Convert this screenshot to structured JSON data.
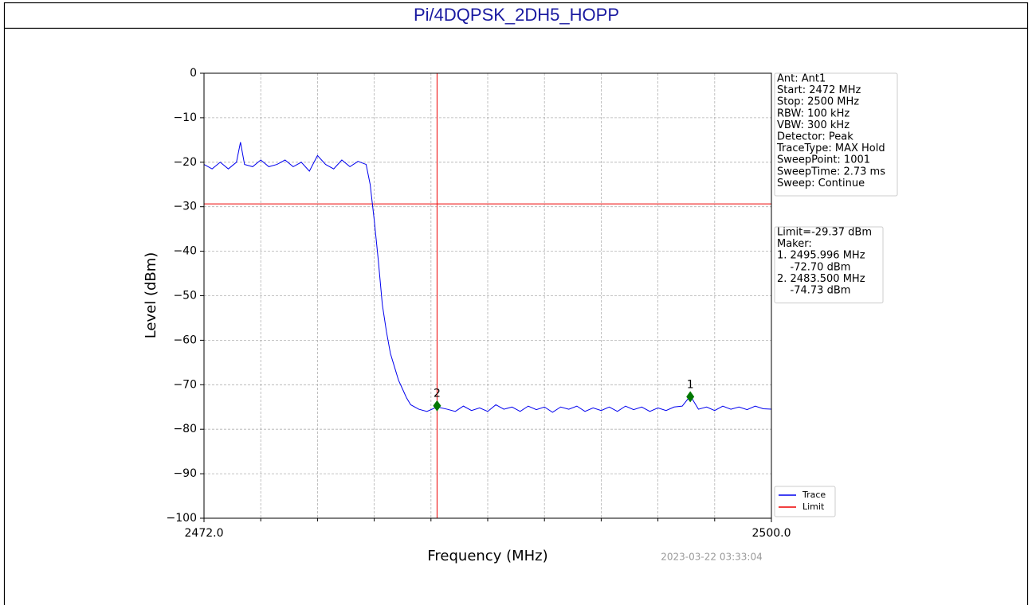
{
  "chart_data": {
    "type": "line",
    "title": "Pi/4DQPSK_2DH5_HOPP",
    "xlabel": "Frequency (MHz)",
    "ylabel": "Level (dBm)",
    "timestamp": "2023-03-22 03:33:04",
    "xlim": [
      2472,
      2500
    ],
    "ylim": [
      -100,
      0
    ],
    "xticks": [
      {
        "value": 2472,
        "label": "2472.0"
      },
      {
        "value": 2500,
        "label": "2500.0"
      }
    ],
    "xminor_ticks": [
      2474.8,
      2477.6,
      2480.4,
      2483.2,
      2486,
      2488.8,
      2491.6,
      2494.4,
      2497.2
    ],
    "yticks": [
      {
        "value": -100,
        "label": "−100"
      },
      {
        "value": -90,
        "label": "−90"
      },
      {
        "value": -80,
        "label": "−80"
      },
      {
        "value": -70,
        "label": "−70"
      },
      {
        "value": -60,
        "label": "−60"
      },
      {
        "value": -50,
        "label": "−50"
      },
      {
        "value": -40,
        "label": "−40"
      },
      {
        "value": -30,
        "label": "−30"
      },
      {
        "value": -20,
        "label": "−20"
      },
      {
        "value": -10,
        "label": "−10"
      },
      0
    ],
    "grid": true,
    "legend": "lower right",
    "x": [
      2472.0,
      2472.4,
      2472.8,
      2473.2,
      2473.6,
      2473.8,
      2474.0,
      2474.4,
      2474.8,
      2475.2,
      2475.6,
      2476.0,
      2476.4,
      2476.8,
      2477.2,
      2477.6,
      2478.0,
      2478.4,
      2478.8,
      2479.2,
      2479.6,
      2480.0,
      2480.2,
      2480.4,
      2480.6,
      2480.8,
      2481.0,
      2481.2,
      2481.4,
      2481.6,
      2481.8,
      2482.0,
      2482.2,
      2482.6,
      2483.0,
      2483.5,
      2484.0,
      2484.4,
      2484.8,
      2485.2,
      2485.6,
      2486.0,
      2486.4,
      2486.8,
      2487.2,
      2487.6,
      2488.0,
      2488.4,
      2488.8,
      2489.2,
      2489.6,
      2490.0,
      2490.4,
      2490.8,
      2491.2,
      2491.6,
      2492.0,
      2492.4,
      2492.8,
      2493.2,
      2493.6,
      2494.0,
      2494.4,
      2494.8,
      2495.2,
      2495.6,
      2496.0,
      2496.4,
      2496.8,
      2497.2,
      2497.6,
      2498.0,
      2498.4,
      2498.8,
      2499.2,
      2499.6,
      2500.0
    ],
    "series": [
      {
        "name": "Trace",
        "color": "#0000ee",
        "values": [
          -20.5,
          -21.5,
          -20,
          -21.5,
          -20,
          -15.5,
          -20.5,
          -21,
          -19.5,
          -21,
          -20.5,
          -19.5,
          -21,
          -20,
          -22,
          -18.5,
          -20.5,
          -21.5,
          -19.5,
          -21,
          -19.8,
          -20.5,
          -25,
          -33,
          -42,
          -52,
          -58,
          -63,
          -66,
          -69,
          -71,
          -73,
          -74.5,
          -75.5,
          -76,
          -75,
          -75.5,
          -76,
          -74.8,
          -75.8,
          -75.2,
          -76,
          -74.5,
          -75.5,
          -75,
          -76,
          -74.8,
          -75.6,
          -75,
          -76.2,
          -75,
          -75.5,
          -74.8,
          -76,
          -75.2,
          -75.8,
          -75,
          -76,
          -74.8,
          -75.6,
          -75,
          -76,
          -75.2,
          -75.8,
          -75,
          -74.8,
          -72.5,
          -75.5,
          -75,
          -75.8,
          -74.8,
          -75.5,
          -75,
          -75.6,
          -74.8,
          -75.4,
          -75.5
        ]
      }
    ],
    "limit": {
      "name": "Limit",
      "value": -29.37,
      "color": "#ee0000"
    },
    "markers": [
      {
        "label": "1",
        "x": 2495.996,
        "y": -72.7,
        "color": "#007700"
      },
      {
        "label": "2",
        "x": 2483.5,
        "y": -74.73,
        "color": "#007700"
      }
    ],
    "info": [
      "Ant: Ant1",
      "Start: 2472 MHz",
      "Stop: 2500 MHz",
      "RBW: 100 kHz",
      "VBW: 300 kHz",
      "Detector: Peak",
      "TraceType: MAX Hold",
      "SweepPoint: 1001",
      "SweepTime: 2.73 ms",
      "Sweep: Continue"
    ],
    "limit_box": [
      "Limit=-29.37 dBm",
      "Maker:",
      "1. 2495.996 MHz",
      "    -72.70 dBm",
      "2. 2483.500 MHz",
      "    -74.73 dBm"
    ]
  }
}
